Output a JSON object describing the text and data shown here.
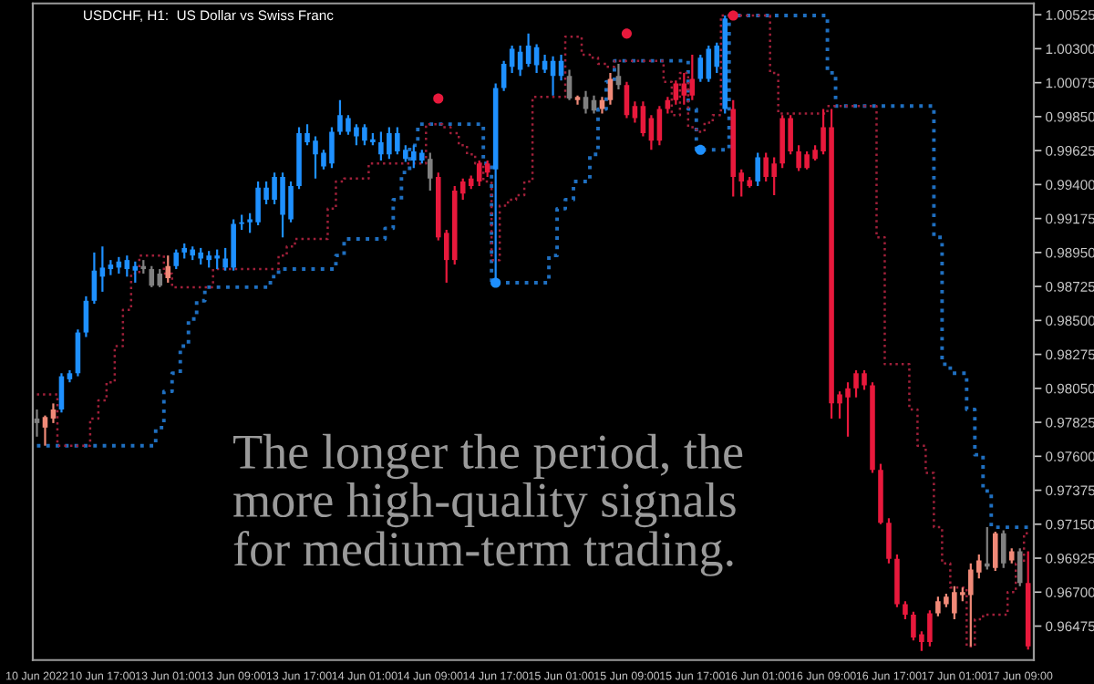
{
  "chart_data": {
    "type": "candlestick",
    "title": "USDCHF, H1:  US Dollar vs Swiss Franc",
    "categories": [
      "10 Jun 2022",
      null,
      null,
      null,
      null,
      null,
      null,
      null,
      "10 Jun 17:00",
      null,
      null,
      null,
      null,
      null,
      null,
      null,
      "13 Jun 01:00",
      null,
      null,
      null,
      null,
      null,
      null,
      null,
      "13 Jun 09:00",
      null,
      null,
      null,
      null,
      null,
      null,
      null,
      "13 Jun 17:00",
      null,
      null,
      null,
      null,
      null,
      null,
      null,
      "14 Jun 01:00",
      null,
      null,
      null,
      null,
      null,
      null,
      null,
      "14 Jun 09:00",
      null,
      null,
      null,
      null,
      null,
      null,
      null,
      "14 Jun 17:00",
      null,
      null,
      null,
      null,
      null,
      null,
      null,
      "15 Jun 01:00",
      null,
      null,
      null,
      null,
      null,
      null,
      null,
      "15 Jun 09:00",
      null,
      null,
      null,
      null,
      null,
      null,
      null,
      "15 Jun 17:00",
      null,
      null,
      null,
      null,
      null,
      null,
      null,
      "16 Jun 01:00",
      null,
      null,
      null,
      null,
      null,
      null,
      null,
      "16 Jun 09:00",
      null,
      null,
      null,
      null,
      null,
      null,
      null,
      "16 Jun 17:00",
      null,
      null,
      null,
      null,
      null,
      null,
      null,
      "17 Jun 01:00",
      null,
      null,
      null,
      null,
      null,
      null,
      null,
      "17 Jun 09:00",
      null
    ],
    "ohlc": [
      [
        0.9785,
        0.9791,
        0.9773,
        0.9782
      ],
      [
        0.9779,
        0.9787,
        0.9767,
        0.9786
      ],
      [
        0.9785,
        0.9795,
        0.9782,
        0.9791
      ],
      [
        0.9791,
        0.9815,
        0.9789,
        0.9813
      ],
      [
        0.9811,
        0.9817,
        0.9809,
        0.9815
      ],
      [
        0.9815,
        0.9844,
        0.9813,
        0.9842
      ],
      [
        0.9842,
        0.9866,
        0.9839,
        0.9863
      ],
      [
        0.9863,
        0.9895,
        0.9861,
        0.9883
      ],
      [
        0.9879,
        0.9899,
        0.9869,
        0.9885
      ],
      [
        0.9884,
        0.989,
        0.988,
        0.9887
      ],
      [
        0.9885,
        0.9892,
        0.9881,
        0.9889
      ],
      [
        0.9884,
        0.9893,
        0.9879,
        0.989
      ],
      [
        0.9883,
        0.9889,
        0.9875,
        0.9886
      ],
      [
        0.9886,
        0.989,
        0.9881,
        0.9884
      ],
      [
        0.9884,
        0.9886,
        0.9872,
        0.9873
      ],
      [
        0.9881,
        0.9884,
        0.9872,
        0.9873
      ],
      [
        0.9878,
        0.9893,
        0.9875,
        0.9886
      ],
      [
        0.9886,
        0.9897,
        0.9884,
        0.9895
      ],
      [
        0.9895,
        0.9901,
        0.9891,
        0.9898
      ],
      [
        0.9893,
        0.9899,
        0.989,
        0.9897
      ],
      [
        0.9891,
        0.9898,
        0.9887,
        0.9895
      ],
      [
        0.989,
        0.9896,
        0.9885,
        0.9893
      ],
      [
        0.9891,
        0.9897,
        0.9884,
        0.9893
      ],
      [
        0.9885,
        0.9898,
        0.9883,
        0.9891
      ],
      [
        0.9885,
        0.9917,
        0.9883,
        0.9914
      ],
      [
        0.9914,
        0.992,
        0.991,
        0.9915
      ],
      [
        0.9915,
        0.9921,
        0.9908,
        0.9917
      ],
      [
        0.9915,
        0.9942,
        0.9913,
        0.9938
      ],
      [
        0.993,
        0.9942,
        0.9927,
        0.9938
      ],
      [
        0.993,
        0.9948,
        0.9927,
        0.9945
      ],
      [
        0.992,
        0.9948,
        0.9905,
        0.9945
      ],
      [
        0.9917,
        0.9942,
        0.9915,
        0.9939
      ],
      [
        0.9939,
        0.9978,
        0.9937,
        0.9974
      ],
      [
        0.9968,
        0.998,
        0.9966,
        0.9974
      ],
      [
        0.996,
        0.9972,
        0.9944,
        0.9969
      ],
      [
        0.9952,
        0.9963,
        0.995,
        0.9961
      ],
      [
        0.9954,
        0.9978,
        0.9951,
        0.9975
      ],
      [
        0.9975,
        0.9996,
        0.9973,
        0.9986
      ],
      [
        0.9975,
        0.9986,
        0.9973,
        0.9984
      ],
      [
        0.9972,
        0.998,
        0.9966,
        0.9978
      ],
      [
        0.9969,
        0.998,
        0.9966,
        0.9978
      ],
      [
        0.9968,
        0.9974,
        0.9966,
        0.997
      ],
      [
        0.996,
        0.9975,
        0.9956,
        0.9968
      ],
      [
        0.996,
        0.9978,
        0.9957,
        0.9974
      ],
      [
        0.9962,
        0.9978,
        0.996,
        0.9974
      ],
      [
        0.9957,
        0.9966,
        0.9955,
        0.9963
      ],
      [
        0.9956,
        0.9966,
        0.9951,
        0.9962
      ],
      [
        0.9956,
        0.9963,
        0.9954,
        0.9961
      ],
      [
        0.9957,
        0.9961,
        0.9936,
        0.9944
      ],
      [
        0.9945,
        0.9948,
        0.9903,
        0.9905
      ],
      [
        0.9908,
        0.991,
        0.9875,
        0.989
      ],
      [
        0.9936,
        0.9939,
        0.9887,
        0.989
      ],
      [
        0.9942,
        0.9944,
        0.993,
        0.9934
      ],
      [
        0.9944,
        0.9946,
        0.9937,
        0.9939
      ],
      [
        0.9954,
        0.9956,
        0.9939,
        0.9942
      ],
      [
        0.9954,
        0.9956,
        0.9945,
        0.9948
      ],
      [
        0.995,
        1.0007,
        0.9875,
        1.0004
      ],
      [
        1.0004,
        1.0022,
        1.0002,
        1.002
      ],
      [
        1.0018,
        1.0032,
        1.0014,
        1.003
      ],
      [
        1.0016,
        1.0032,
        1.0012,
        1.0028
      ],
      [
        1.002,
        1.004,
        1.0018,
        1.0032
      ],
      [
        1.0019,
        1.0033,
        1.0014,
        1.0031
      ],
      [
        1.0016,
        1.0026,
        1.0014,
        1.0022
      ],
      [
        1.0012,
        1.0025,
        0.9999,
        1.0022
      ],
      [
        1.0012,
        1.0026,
        1.0009,
        1.0022
      ],
      [
        1.0012,
        1.0016,
        0.9996,
        0.9997
      ],
      [
        0.9996,
        0.9999,
        0.9993,
        0.9998
      ],
      [
        0.9998,
        1.0002,
        0.9987,
        0.999
      ],
      [
        0.9996,
        0.9999,
        0.9987,
        0.9989
      ],
      [
        0.999,
        0.9998,
        0.9987,
        0.9996
      ],
      [
        0.9996,
        1.0014,
        0.9993,
        1.001
      ],
      [
        1.0006,
        1.002,
        1.0003,
        1.0012
      ],
      [
        1.0006,
        1.0008,
        0.9984,
        0.9986
      ],
      [
        0.9992,
        0.9995,
        0.9981,
        0.9984
      ],
      [
        0.9992,
        0.9995,
        0.9972,
        0.9974
      ],
      [
        0.9984,
        0.9986,
        0.9963,
        0.9969
      ],
      [
        0.999,
        0.9992,
        0.9966,
        0.9969
      ],
      [
        0.9996,
        0.9998,
        0.9987,
        0.999
      ],
      [
        1.0007,
        1.0009,
        0.9993,
        0.9996
      ],
      [
        1.0007,
        1.0014,
        0.9993,
        0.9999
      ],
      [
        1.001,
        1.0026,
        0.9996,
        0.9999
      ],
      [
        1.001,
        1.0026,
        1.0008,
        1.0024
      ],
      [
        1.001,
        1.0032,
        1.0008,
        1.003
      ],
      [
        1.0018,
        1.0034,
        1.0014,
        1.0032
      ],
      [
        0.999,
        1.0052,
        0.9987,
        1.005
      ],
      [
        0.999,
        0.9996,
        0.9932,
        0.9945
      ],
      [
        0.9948,
        0.995,
        0.9932,
        0.9942
      ],
      [
        0.9943,
        0.9945,
        0.9938,
        0.9939
      ],
      [
        0.9942,
        0.9961,
        0.9939,
        0.9958
      ],
      [
        0.9958,
        0.9961,
        0.9942,
        0.9945
      ],
      [
        0.9954,
        0.9958,
        0.9933,
        0.9945
      ],
      [
        0.9984,
        0.9986,
        0.9951,
        0.9954
      ],
      [
        0.9984,
        0.9986,
        0.996,
        0.9962
      ],
      [
        0.9962,
        0.9966,
        0.9949,
        0.9951
      ],
      [
        0.996,
        0.9962,
        0.995,
        0.9951
      ],
      [
        0.9963,
        0.9966,
        0.9956,
        0.9957
      ],
      [
        0.9978,
        0.999,
        0.996,
        0.9962
      ],
      [
        0.9978,
        0.999,
        0.9785,
        0.9795
      ],
      [
        0.9801,
        0.9803,
        0.9785,
        0.9795
      ],
      [
        0.9805,
        0.9809,
        0.9773,
        0.9799
      ],
      [
        0.9815,
        0.9817,
        0.9799,
        0.9805
      ],
      [
        0.9815,
        0.9817,
        0.9804,
        0.9807
      ],
      [
        0.9807,
        0.9809,
        0.9749,
        0.9751
      ],
      [
        0.9751,
        0.9755,
        0.9715,
        0.9716
      ],
      [
        0.9716,
        0.9719,
        0.9689,
        0.9692
      ],
      [
        0.9692,
        0.9695,
        0.966,
        0.9662
      ],
      [
        0.9662,
        0.9664,
        0.9652,
        0.9655
      ],
      [
        0.9655,
        0.9657,
        0.9638,
        0.964
      ],
      [
        0.9642,
        0.9644,
        0.9631,
        0.9637
      ],
      [
        0.9656,
        0.9658,
        0.9634,
        0.9637
      ],
      [
        0.9656,
        0.9667,
        0.9654,
        0.9664
      ],
      [
        0.9662,
        0.9669,
        0.966,
        0.9667
      ],
      [
        0.9656,
        0.9674,
        0.9652,
        0.967
      ],
      [
        0.9668,
        0.9673,
        0.9664,
        0.967
      ],
      [
        0.9668,
        0.9689,
        0.9634,
        0.9685
      ],
      [
        0.9683,
        0.9695,
        0.9679,
        0.9691
      ],
      [
        0.9687,
        0.9713,
        0.9685,
        0.9689
      ],
      [
        0.9686,
        0.971,
        0.9684,
        0.9709
      ],
      [
        0.9709,
        0.9711,
        0.9686,
        0.9689
      ],
      [
        0.9691,
        0.9699,
        0.9689,
        0.9697
      ],
      [
        0.9697,
        0.9699,
        0.9674,
        0.9676
      ],
      [
        0.9676,
        0.9697,
        0.9632,
        0.9634
      ]
    ],
    "colors": [
      "#808080",
      "#f08a78",
      "#f08a78",
      "#1e90ff",
      "#1e90ff",
      "#1e90ff",
      "#1e90ff",
      "#1e90ff",
      "#1e90ff",
      "#1e90ff",
      "#1e90ff",
      "#1e90ff",
      "#1e90ff",
      "#808080",
      "#808080",
      "#808080",
      "#f08a78",
      "#1e90ff",
      "#1e90ff",
      "#1e90ff",
      "#1e90ff",
      "#1e90ff",
      "#1e90ff",
      "#1e90ff",
      "#1e90ff",
      "#1e90ff",
      "#1e90ff",
      "#1e90ff",
      "#1e90ff",
      "#1e90ff",
      "#1e90ff",
      "#1e90ff",
      "#1e90ff",
      "#1e90ff",
      "#1e90ff",
      "#1e90ff",
      "#1e90ff",
      "#1e90ff",
      "#1e90ff",
      "#1e90ff",
      "#1e90ff",
      "#1e90ff",
      "#1e90ff",
      "#1e90ff",
      "#1e90ff",
      "#1e90ff",
      "#1e90ff",
      "#1e90ff",
      "#808080",
      "#e8193c",
      "#e8193c",
      "#e8193c",
      "#e8193c",
      "#e8193c",
      "#e8193c",
      "#e8193c",
      "#1e90ff",
      "#1e90ff",
      "#1e90ff",
      "#1e90ff",
      "#1e90ff",
      "#1e90ff",
      "#1e90ff",
      "#1e90ff",
      "#1e90ff",
      "#808080",
      "#f08a78",
      "#808080",
      "#808080",
      "#f08a78",
      "#f08a78",
      "#808080",
      "#e8193c",
      "#e8193c",
      "#e8193c",
      "#e8193c",
      "#e8193c",
      "#e8193c",
      "#e8193c",
      "#e8193c",
      "#e8193c",
      "#1e90ff",
      "#1e90ff",
      "#1e90ff",
      "#1e90ff",
      "#e8193c",
      "#e8193c",
      "#e8193c",
      "#1e90ff",
      "#e8193c",
      "#e8193c",
      "#e8193c",
      "#e8193c",
      "#e8193c",
      "#e8193c",
      "#e8193c",
      "#e8193c",
      "#e8193c",
      "#e8193c",
      "#e8193c",
      "#e8193c",
      "#e8193c",
      "#e8193c",
      "#e8193c",
      "#e8193c",
      "#e8193c",
      "#e8193c",
      "#e8193c",
      "#e8193c",
      "#e8193c",
      "#f08a78",
      "#f08a78",
      "#f08a78",
      "#f08a78",
      "#f08a78",
      "#f08a78",
      "#808080",
      "#f08a78",
      "#808080",
      "#f08a78",
      "#808080",
      "#e8193c"
    ],
    "series": [
      {
        "type": "step",
        "color": "#1f6fc0",
        "line_style": "dotted",
        "values": [
          0.9767,
          0.9767,
          0.9767,
          0.9767,
          0.9767,
          0.9767,
          0.9767,
          0.9767,
          0.9767,
          0.9767,
          0.9767,
          0.9767,
          0.9767,
          0.9767,
          0.9767,
          0.9779,
          0.9803,
          0.9815,
          0.9833,
          0.9851,
          0.9863,
          0.9872,
          0.9872,
          0.9872,
          0.9872,
          0.9872,
          0.9872,
          0.9872,
          0.9872,
          0.9879,
          0.9884,
          0.9884,
          0.9884,
          0.9884,
          0.9884,
          0.9884,
          0.9884,
          0.9893,
          0.9904,
          0.9904,
          0.9904,
          0.9904,
          0.9904,
          0.9911,
          0.993,
          0.9948,
          0.9966,
          0.998,
          0.998,
          0.998,
          0.998,
          0.998,
          0.998,
          0.998,
          0.998,
          0.9954,
          0.9875,
          0.9875,
          0.9875,
          0.9875,
          0.9875,
          0.9875,
          0.9875,
          0.9893,
          0.9924,
          0.993,
          0.9942,
          0.9942,
          0.996,
          0.999,
          1.0008,
          1.0022,
          1.0022,
          1.0022,
          1.0022,
          1.0022,
          1.0022,
          1.0022,
          1.0022,
          1.0022,
          0.999,
          0.9963,
          0.9963,
          0.9963,
          0.9963,
          1.0052,
          1.0052,
          1.0052,
          1.0052,
          1.0052,
          1.0052,
          1.0052,
          1.0052,
          1.0052,
          1.0052,
          1.0052,
          1.0052,
          1.0014,
          0.9992,
          0.9992,
          0.9992,
          0.9992,
          0.9992,
          0.9992,
          0.9992,
          0.9992,
          0.9992,
          0.9992,
          0.9992,
          0.9992,
          0.9905,
          0.9821,
          0.9815,
          0.9815,
          0.9791,
          0.9761,
          0.9737,
          0.9713,
          0.9713,
          0.9713,
          0.9713,
          0.9713
        ]
      },
      {
        "type": "step",
        "color": "#a0203a",
        "line_style": "dotted",
        "values": [
          0.9801,
          0.9801,
          0.9801,
          0.9767,
          0.9767,
          0.9767,
          0.9767,
          0.9785,
          0.9797,
          0.9809,
          0.9833,
          0.9857,
          0.9881,
          0.9893,
          0.9893,
          0.9893,
          0.9881,
          0.9872,
          0.9872,
          0.9872,
          0.9872,
          0.9872,
          0.9884,
          0.9884,
          0.9884,
          0.9884,
          0.9884,
          0.9884,
          0.9884,
          0.9884,
          0.9893,
          0.9899,
          0.9904,
          0.9904,
          0.9904,
          0.9904,
          0.9924,
          0.9942,
          0.9944,
          0.9944,
          0.9944,
          0.9954,
          0.9954,
          0.9954,
          0.9954,
          0.9954,
          0.9954,
          0.9954,
          0.998,
          0.998,
          0.9978,
          0.9974,
          0.9966,
          0.996,
          0.9954,
          0.9942,
          0.989,
          0.9926,
          0.993,
          0.9933,
          0.9942,
          0.9998,
          0.9998,
          0.9998,
          0.9998,
          1.0038,
          1.0038,
          1.0026,
          1.0024,
          1.002,
          1.0018,
          1.0022,
          1.0022,
          1.0022,
          1.0022,
          1.0022,
          1.0022,
          1.0008,
          0.9986,
          1.0014,
          0.9978,
          0.9975,
          0.9981,
          0.9986,
          1.0052,
          1.0052,
          1.0052,
          1.0052,
          1.0052,
          1.0052,
          1.0014,
          0.9987,
          0.9987,
          0.9987,
          0.9987,
          0.9987,
          0.9987,
          0.9992,
          0.9992,
          0.9992,
          0.9992,
          0.9992,
          0.9992,
          0.9905,
          0.9821,
          0.9821,
          0.9821,
          0.9791,
          0.9767,
          0.9749,
          0.9713,
          0.9689,
          0.9673,
          0.9673,
          0.9634,
          0.9652,
          0.9655,
          0.9655,
          0.9655,
          0.967,
          0.9689,
          0.9709
        ]
      },
      {
        "type": "scatter",
        "color": "#e8193c",
        "marker": "circle",
        "values": [
          null,
          null,
          null,
          null,
          null,
          null,
          null,
          null,
          null,
          null,
          null,
          null,
          null,
          null,
          null,
          null,
          null,
          null,
          null,
          null,
          null,
          null,
          null,
          null,
          null,
          null,
          null,
          null,
          null,
          null,
          null,
          null,
          null,
          null,
          null,
          null,
          null,
          null,
          null,
          null,
          null,
          null,
          null,
          null,
          null,
          null,
          null,
          null,
          null,
          0.9997,
          null,
          null,
          null,
          null,
          null,
          null,
          null,
          null,
          null,
          null,
          null,
          null,
          null,
          null,
          null,
          null,
          null,
          null,
          null,
          null,
          null,
          null,
          1.004,
          null,
          null,
          null,
          null,
          null,
          null,
          null,
          null,
          null,
          null,
          null,
          null,
          1.0052,
          null,
          null,
          null,
          null,
          null,
          null,
          null,
          null,
          null,
          null,
          null,
          null,
          null,
          null,
          null,
          null,
          null,
          null,
          null,
          null,
          null,
          null,
          null,
          null,
          null,
          null,
          null,
          null,
          null,
          null,
          null,
          null,
          null,
          null,
          null,
          null
        ]
      },
      {
        "type": "scatter",
        "color": "#1e90ff",
        "marker": "circle",
        "values": [
          null,
          null,
          null,
          null,
          null,
          null,
          null,
          null,
          null,
          null,
          null,
          null,
          null,
          null,
          null,
          null,
          null,
          null,
          null,
          null,
          null,
          null,
          null,
          null,
          null,
          null,
          null,
          null,
          null,
          null,
          null,
          null,
          null,
          null,
          null,
          null,
          null,
          null,
          null,
          null,
          null,
          null,
          null,
          null,
          null,
          null,
          null,
          null,
          null,
          null,
          null,
          null,
          null,
          null,
          null,
          null,
          0.9875,
          null,
          null,
          null,
          null,
          null,
          null,
          null,
          null,
          null,
          null,
          null,
          null,
          null,
          null,
          null,
          null,
          null,
          null,
          null,
          null,
          null,
          null,
          null,
          null,
          0.9963,
          null,
          null,
          null,
          null,
          null,
          null,
          null,
          null,
          null,
          null,
          null,
          null,
          null,
          null,
          null,
          null,
          null,
          null,
          null,
          null,
          null,
          null,
          null,
          null,
          null,
          null,
          null,
          null,
          null,
          null,
          null,
          null,
          null,
          null,
          null,
          null,
          null,
          null,
          null,
          null
        ]
      }
    ],
    "ylim": [
      0.9625,
      1.006
    ],
    "yticks": [
      0.96475,
      {
        "value": 0.967,
        "label": "0.96700"
      },
      0.96925,
      {
        "value": 0.9715,
        "label": "0.97150"
      },
      0.97375,
      {
        "value": 0.976,
        "label": "0.97600"
      },
      0.97825,
      {
        "value": 0.9805,
        "label": "0.98050"
      },
      0.98275,
      {
        "value": 0.985,
        "label": "0.98500"
      },
      0.98725,
      {
        "value": 0.9895,
        "label": "0.98950"
      },
      0.99175,
      {
        "value": 0.994,
        "label": "0.99400"
      },
      0.99625,
      {
        "value": 0.9985,
        "label": "0.99850"
      },
      1.00075,
      {
        "value": 1.003,
        "label": "1.00300"
      },
      1.00525
    ],
    "annotations": [
      "The longer the period, the\nmore high-quality signals\nfor medium-term trading."
    ]
  }
}
